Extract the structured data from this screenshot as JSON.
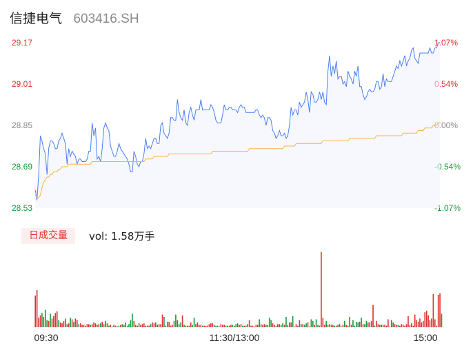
{
  "header": {
    "name": "信捷电气",
    "code": "603416.SH"
  },
  "volume": {
    "tab_label": "日成交量",
    "summary": "vol: 1.58万手"
  },
  "colors": {
    "price": "#4a7ff0",
    "avg": "#f5b640",
    "up": "#e0322f",
    "down": "#1a9c3a",
    "flat": "#888888"
  },
  "chart_data": [
    {
      "type": "line",
      "title": "",
      "prev_close": 28.85,
      "ylim": [
        28.53,
        29.17
      ],
      "y_ticks": [
        "29.17",
        "29.01",
        "28.85",
        "28.69",
        "28.53"
      ],
      "pct_ticks": [
        "1.07%",
        "0.54%",
        "0.00%",
        "-0.54%",
        "-1.07%"
      ],
      "x_ticks": [
        "09:30",
        "11:30/13:00",
        "15:00"
      ],
      "minutes": 240,
      "series": [
        {
          "key": "price",
          "values": [
            28.6,
            28.56,
            28.66,
            28.81,
            28.79,
            28.76,
            28.74,
            28.66,
            28.76,
            28.79,
            28.79,
            28.78,
            28.76,
            28.76,
            28.79,
            28.8,
            28.82,
            28.8,
            28.78,
            28.7,
            28.76,
            28.73,
            28.75,
            28.74,
            28.73,
            28.7,
            28.72,
            28.72,
            28.71,
            28.71,
            28.71,
            28.72,
            28.75,
            28.75,
            28.86,
            28.81,
            28.84,
            28.72,
            28.73,
            28.71,
            28.76,
            28.84,
            28.86,
            28.84,
            28.83,
            28.77,
            28.75,
            28.73,
            28.73,
            28.75,
            28.78,
            28.76,
            28.75,
            28.74,
            28.73,
            28.72,
            28.7,
            28.67,
            28.67,
            28.75,
            28.73,
            28.7,
            28.69,
            28.71,
            28.71,
            28.74,
            28.8,
            28.76,
            28.77,
            28.76,
            28.78,
            28.8,
            28.8,
            28.78,
            28.78,
            28.85,
            28.86,
            28.82,
            28.81,
            28.8,
            28.82,
            28.88,
            28.88,
            28.87,
            28.87,
            28.95,
            28.9,
            28.88,
            28.87,
            28.91,
            28.86,
            28.85,
            28.9,
            28.92,
            28.89,
            28.87,
            28.91,
            28.91,
            28.91,
            28.95,
            28.91,
            28.91,
            28.91,
            28.91,
            28.91,
            28.93,
            28.92,
            28.9,
            28.87,
            28.86,
            28.86,
            28.86,
            28.89,
            28.93,
            28.91,
            28.91,
            28.92,
            28.92,
            28.91,
            28.91,
            28.91,
            28.9,
            28.92,
            28.93,
            28.92,
            28.92,
            28.9,
            28.9,
            28.9,
            28.9,
            28.9,
            28.9,
            28.91,
            28.91,
            28.89,
            28.88,
            28.89,
            28.88,
            28.85,
            28.88,
            28.88,
            28.87,
            28.83,
            28.82,
            28.8,
            28.81,
            28.83,
            28.81,
            28.81,
            28.82,
            28.8,
            28.81,
            28.85,
            28.92,
            28.89,
            28.91,
            28.91,
            28.89,
            28.94,
            28.92,
            28.93,
            28.94,
            28.98,
            28.95,
            28.9,
            28.98,
            28.97,
            28.94,
            28.94,
            28.95,
            28.98,
            28.95,
            28.98,
            28.94,
            28.93,
            29.06,
            29.12,
            29.04,
            29.08,
            29.05,
            29.1,
            29.03,
            29.04,
            29.04,
            29.01,
            29.02,
            29.0,
            29.06,
            29.04,
            29.03,
            29.01,
            29.06,
            29.04,
            29.08,
            29.0,
            29.0,
            28.97,
            28.95,
            28.96,
            28.98,
            28.99,
            28.98,
            28.98,
            28.99,
            29.02,
            29.02,
            28.99,
            29.0,
            29.05,
            29.0,
            29.03,
            29.02,
            29.02,
            29.02,
            29.04,
            29.06,
            29.08,
            29.07,
            29.1,
            29.08,
            29.1,
            29.12,
            29.08,
            29.1,
            29.11,
            29.14,
            29.15,
            29.11,
            29.1,
            29.09,
            29.13,
            29.13,
            29.13,
            29.13,
            29.13,
            29.13,
            29.15,
            29.13,
            29.13,
            29.15,
            29.15,
            29.17,
            29.17
          ]
        },
        {
          "key": "avg",
          "values": [
            28.58,
            28.57,
            28.57,
            28.58,
            28.61,
            28.63,
            28.64,
            28.65,
            28.65,
            28.66,
            28.66,
            28.67,
            28.67,
            28.67,
            28.68,
            28.68,
            28.69,
            28.69,
            28.69,
            28.69,
            28.7,
            28.7,
            28.7,
            28.7,
            28.7,
            28.7,
            28.7,
            28.7,
            28.7,
            28.7,
            28.7,
            28.7,
            28.7,
            28.7,
            28.71,
            28.71,
            28.71,
            28.71,
            28.71,
            28.71,
            28.71,
            28.71,
            28.71,
            28.71,
            28.71,
            28.71,
            28.71,
            28.71,
            28.71,
            28.71,
            28.71,
            28.71,
            28.71,
            28.71,
            28.71,
            28.71,
            28.71,
            28.71,
            28.71,
            28.71,
            28.71,
            28.71,
            28.71,
            28.71,
            28.71,
            28.71,
            28.72,
            28.72,
            28.72,
            28.72,
            28.72,
            28.73,
            28.73,
            28.73,
            28.73,
            28.73,
            28.73,
            28.73,
            28.73,
            28.73,
            28.74,
            28.74,
            28.74,
            28.74,
            28.74,
            28.74,
            28.74,
            28.74,
            28.74,
            28.74,
            28.74,
            28.74,
            28.74,
            28.74,
            28.74,
            28.74,
            28.74,
            28.74,
            28.74,
            28.74,
            28.74,
            28.74,
            28.74,
            28.74,
            28.74,
            28.74,
            28.75,
            28.75,
            28.75,
            28.75,
            28.75,
            28.75,
            28.75,
            28.75,
            28.75,
            28.75,
            28.75,
            28.75,
            28.75,
            28.75,
            28.75,
            28.75,
            28.75,
            28.75,
            28.75,
            28.75,
            28.75,
            28.75,
            28.76,
            28.76,
            28.76,
            28.76,
            28.76,
            28.76,
            28.76,
            28.76,
            28.76,
            28.76,
            28.76,
            28.76,
            28.76,
            28.76,
            28.76,
            28.76,
            28.76,
            28.76,
            28.76,
            28.76,
            28.76,
            28.77,
            28.77,
            28.77,
            28.77,
            28.77,
            28.77,
            28.77,
            28.78,
            28.78,
            28.78,
            28.78,
            28.78,
            28.78,
            28.78,
            28.78,
            28.78,
            28.78,
            28.78,
            28.78,
            28.78,
            28.78,
            28.78,
            28.78,
            28.79,
            28.79,
            28.79,
            28.79,
            28.79,
            28.79,
            28.79,
            28.79,
            28.79,
            28.79,
            28.79,
            28.79,
            28.79,
            28.79,
            28.79,
            28.79,
            28.8,
            28.8,
            28.8,
            28.8,
            28.8,
            28.8,
            28.8,
            28.8,
            28.8,
            28.8,
            28.8,
            28.8,
            28.8,
            28.8,
            28.8,
            28.8,
            28.81,
            28.81,
            28.81,
            28.81,
            28.81,
            28.81,
            28.81,
            28.81,
            28.81,
            28.81,
            28.81,
            28.81,
            28.81,
            28.81,
            28.81,
            28.81,
            28.82,
            28.82,
            28.82,
            28.82,
            28.82,
            28.82,
            28.82,
            28.82,
            28.82,
            28.83,
            28.83,
            28.83,
            28.83,
            28.84,
            28.84,
            28.84,
            28.84,
            28.84,
            28.85,
            28.85,
            28.85,
            28.86,
            28.86,
            28.86
          ]
        }
      ]
    },
    {
      "type": "bar",
      "title": "",
      "ylim": [
        0,
        100
      ],
      "values": [
        40,
        47,
        12,
        15,
        18,
        13,
        22,
        9,
        8,
        17,
        11,
        14,
        18,
        20,
        9,
        6,
        5,
        8,
        11,
        4,
        5,
        12,
        10,
        7,
        11,
        9,
        4,
        5,
        3,
        3,
        2,
        4,
        4,
        3,
        4,
        6,
        5,
        3,
        4,
        5,
        7,
        4,
        8,
        5,
        2,
        3,
        1,
        3,
        2,
        1,
        2,
        3,
        4,
        3,
        6,
        2,
        4,
        9,
        17,
        8,
        3,
        2,
        5,
        3,
        4,
        5,
        2,
        2,
        2,
        4,
        6,
        5,
        6,
        3,
        4,
        4,
        16,
        13,
        2,
        7,
        7,
        2,
        3,
        8,
        16,
        9,
        4,
        6,
        15,
        3,
        2,
        2,
        2,
        6,
        3,
        12,
        4,
        6,
        3,
        3,
        2,
        2,
        2,
        2,
        4,
        5,
        5,
        3,
        2,
        2,
        1,
        4,
        3,
        3,
        2,
        2,
        2,
        3,
        3,
        2,
        4,
        5,
        3,
        4,
        2,
        2,
        2,
        4,
        9,
        2,
        2,
        1,
        3,
        3,
        10,
        4,
        3,
        4,
        3,
        3,
        12,
        9,
        5,
        3,
        2,
        4,
        4,
        3,
        5,
        3,
        13,
        3,
        6,
        6,
        14,
        1,
        4,
        2,
        9,
        4,
        4,
        3,
        5,
        6,
        1,
        10,
        8,
        3,
        10,
        3,
        2,
        95,
        12,
        3,
        8,
        3,
        4,
        3,
        3,
        2,
        2,
        3,
        4,
        1,
        3,
        8,
        3,
        2,
        13,
        3,
        9,
        2,
        7,
        6,
        7,
        12,
        4,
        4,
        8,
        6,
        6,
        8,
        28,
        2,
        8,
        4,
        3,
        3,
        3,
        3,
        2,
        10,
        1,
        9,
        6,
        4,
        3,
        3,
        2,
        4,
        3,
        2,
        4,
        14,
        3,
        5,
        2,
        16,
        9,
        7,
        11,
        6,
        8,
        19,
        21,
        15,
        9,
        11,
        42,
        10,
        2,
        41,
        43,
        17
      ],
      "directions": [
        "up",
        "up",
        "up",
        "up",
        "down",
        "up",
        "down",
        "down",
        "up",
        "down",
        "up",
        "up",
        "up",
        "up",
        "down",
        "up",
        "up",
        "up",
        "up",
        "down",
        "up",
        "down",
        "up",
        "down",
        "up",
        "up",
        "down",
        "up",
        "up",
        "up",
        "down",
        "up",
        "up",
        "down",
        "up",
        "up",
        "up",
        "down",
        "up",
        "down",
        "up",
        "down",
        "up",
        "up",
        "down",
        "up",
        "down",
        "up",
        "down",
        "up",
        "down",
        "up",
        "down",
        "down",
        "up",
        "down",
        "down",
        "down",
        "down",
        "up",
        "up",
        "down",
        "down",
        "up",
        "up",
        "up",
        "up",
        "down",
        "up",
        "down",
        "up",
        "up",
        "down",
        "down",
        "up",
        "up",
        "up",
        "down",
        "down",
        "down",
        "up",
        "up",
        "up",
        "down",
        "down",
        "up",
        "down",
        "down",
        "up",
        "down",
        "up",
        "up",
        "down",
        "up",
        "down",
        "down",
        "up",
        "up",
        "up",
        "up",
        "down",
        "up",
        "up",
        "up",
        "up",
        "up",
        "up",
        "down",
        "down",
        "down",
        "up",
        "up",
        "up",
        "up",
        "down",
        "down",
        "up",
        "up",
        "down",
        "down",
        "down",
        "down",
        "up",
        "up",
        "down",
        "up",
        "down",
        "down",
        "up",
        "up",
        "up",
        "up",
        "up",
        "up",
        "down",
        "down",
        "up",
        "up",
        "down",
        "up",
        "down",
        "down",
        "up",
        "up",
        "down",
        "up",
        "up",
        "down",
        "down",
        "up",
        "down",
        "up",
        "up",
        "up",
        "down",
        "up",
        "up",
        "down",
        "up",
        "down",
        "up",
        "down",
        "down",
        "up",
        "up",
        "down",
        "down",
        "up",
        "down",
        "down",
        "up",
        "up",
        "up",
        "up",
        "down",
        "up",
        "down",
        "down",
        "up",
        "down",
        "up",
        "down",
        "up",
        "down",
        "up",
        "down",
        "up",
        "down",
        "up",
        "up",
        "down",
        "down",
        "down",
        "down",
        "up",
        "down",
        "up",
        "down",
        "down",
        "up",
        "down",
        "up",
        "up",
        "down",
        "up",
        "up",
        "down",
        "up",
        "up",
        "up",
        "up",
        "up",
        "up",
        "up",
        "down",
        "up",
        "up",
        "down",
        "up",
        "up",
        "up",
        "up",
        "up",
        "up",
        "up",
        "up",
        "up",
        "up",
        "up",
        "up",
        "up",
        "up",
        "up",
        "up",
        "up",
        "up",
        "up",
        "up",
        "up",
        "up",
        "up",
        "up",
        "up",
        "down"
      ]
    }
  ]
}
